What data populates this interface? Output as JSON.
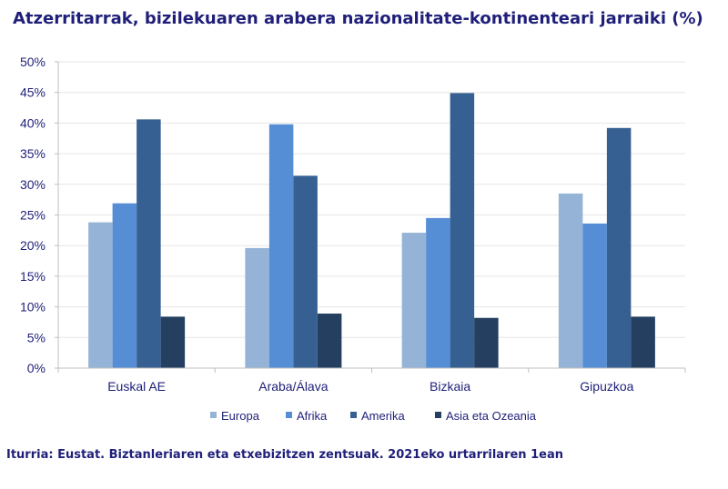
{
  "title": "Atzerritarrak, bizilekuaren arabera nazionalitate-kontinenteari jarraiki (%)",
  "source": "Iturria: Eustat. Biztanleriaren eta etxebizitzen zentsuak. 2021eko urtarrilaren 1ean",
  "chart_data": {
    "type": "bar",
    "title": "Atzerritarrak, bizilekuaren arabera nazionalitate-kontinenteari jarraiki (%)",
    "categories": [
      "Euskal AE",
      "Araba/Álava",
      "Bizkaia",
      "Gipuzkoa"
    ],
    "series": [
      {
        "name": "Europa",
        "color": "#95b3d7",
        "values": [
          23.8,
          19.6,
          22.1,
          28.5
        ]
      },
      {
        "name": "Afrika",
        "color": "#558ed5",
        "values": [
          26.9,
          39.8,
          24.5,
          23.6
        ]
      },
      {
        "name": "Amerika",
        "color": "#366092",
        "values": [
          40.6,
          31.4,
          44.9,
          39.2
        ]
      },
      {
        "name": "Asia eta Ozeania",
        "color": "#243f60",
        "values": [
          8.4,
          8.9,
          8.2,
          8.4
        ]
      }
    ],
    "yticks": [
      "0%",
      "5%",
      "10%",
      "15%",
      "20%",
      "25%",
      "30%",
      "35%",
      "40%",
      "45%",
      "50%"
    ],
    "ylim": [
      0,
      50
    ],
    "grid": true,
    "legend": "bottom"
  }
}
